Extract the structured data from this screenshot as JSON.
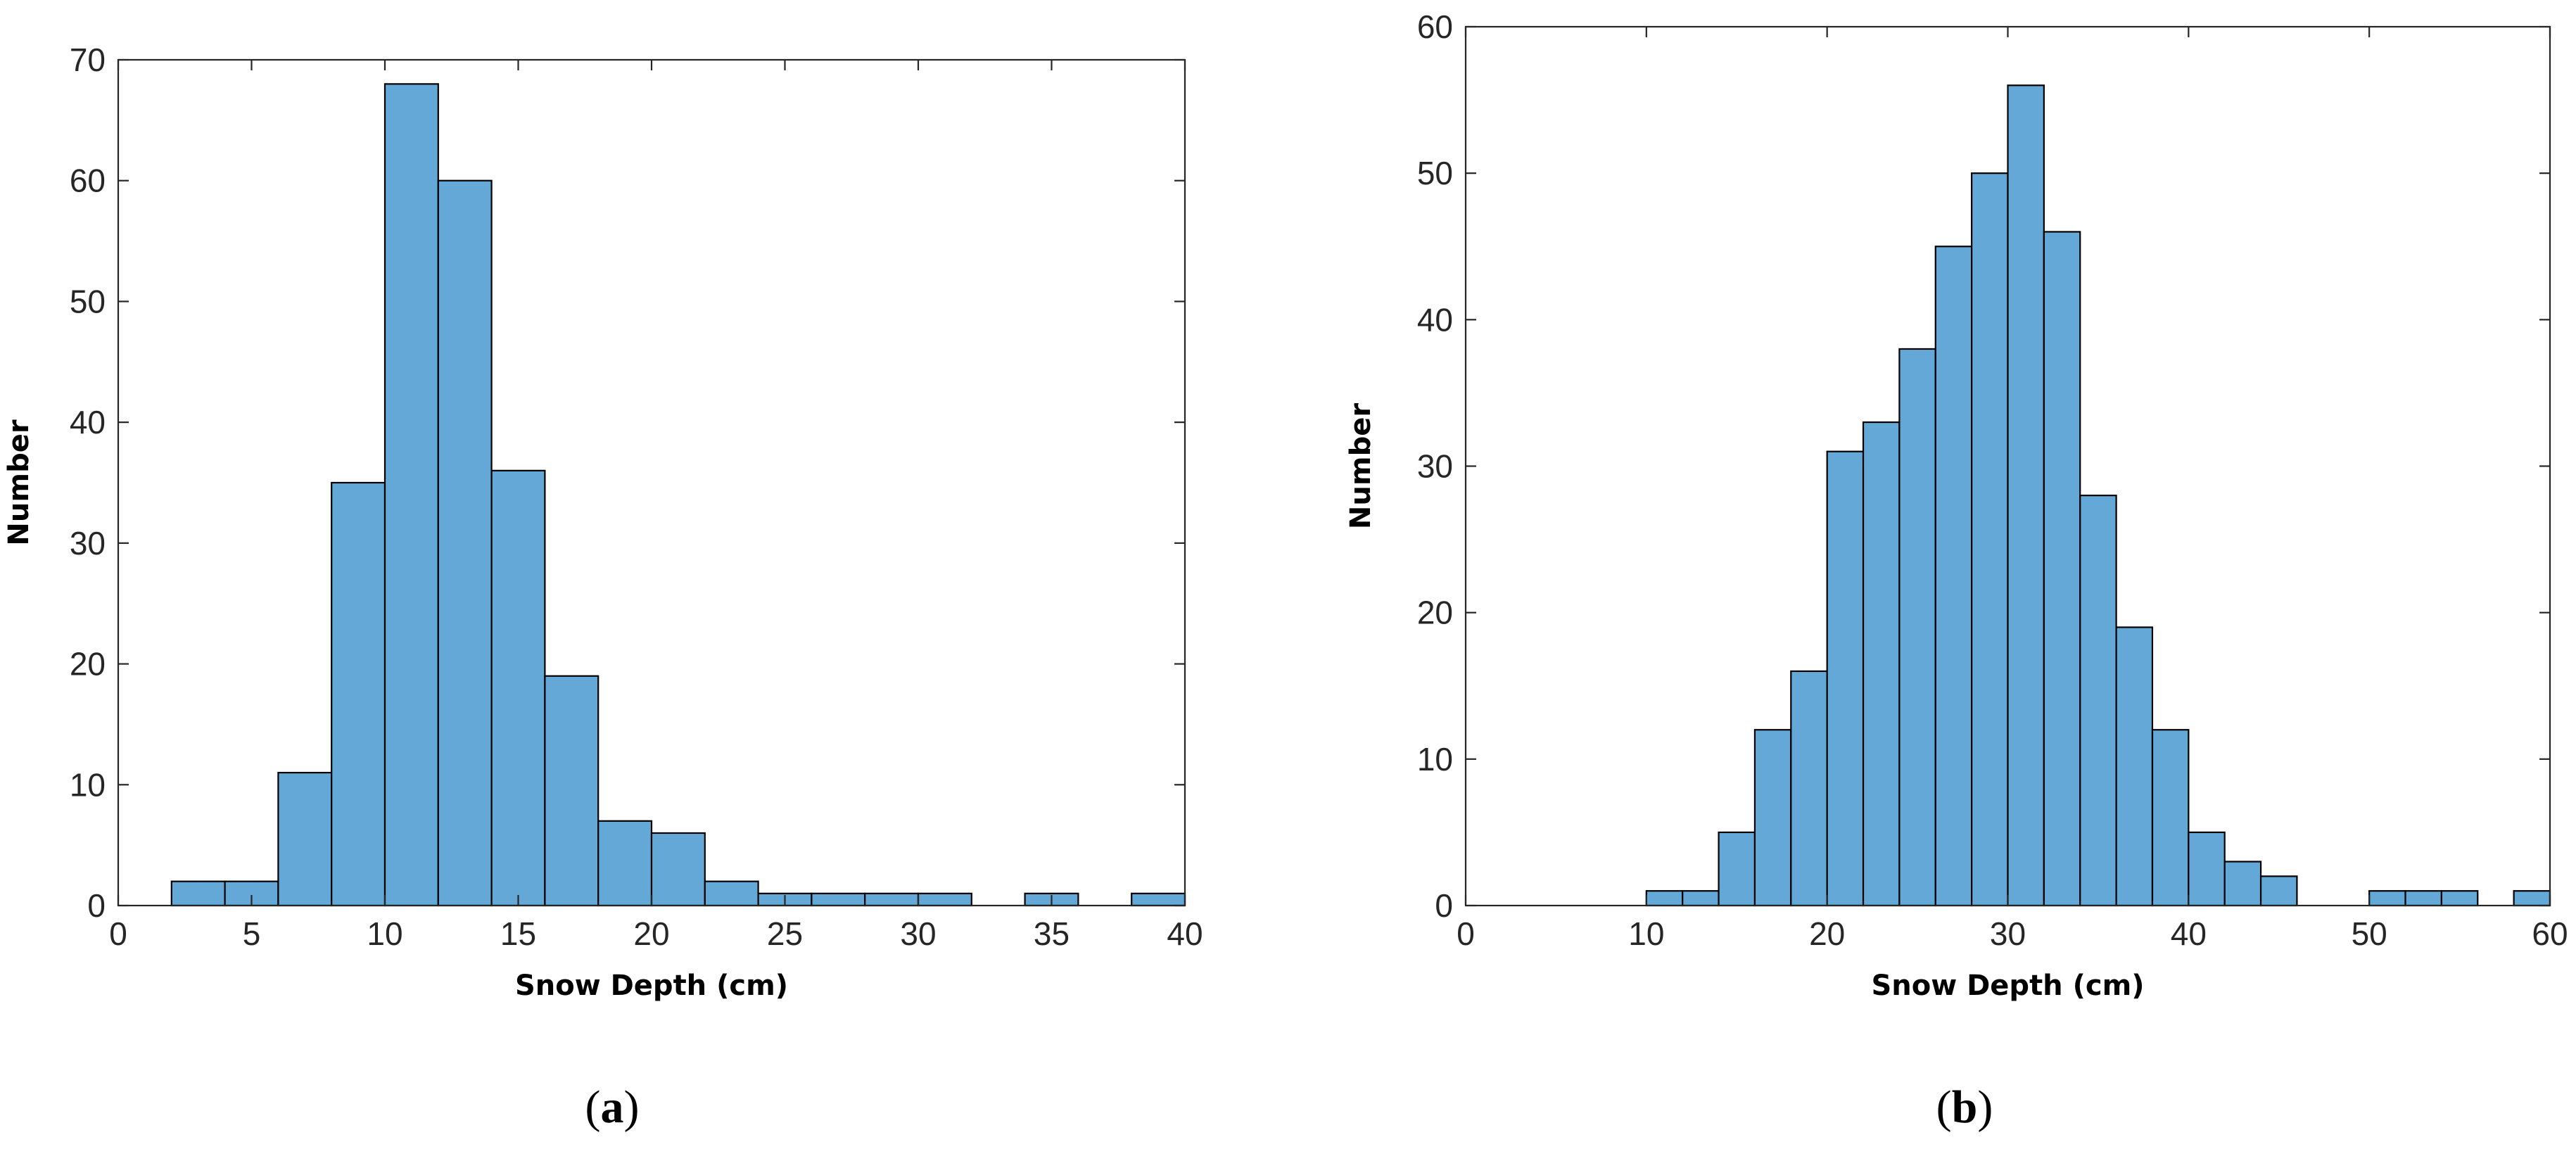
{
  "chart_data": [
    {
      "type": "bar",
      "panel_label": "a",
      "title": "",
      "xlabel": "Snow Depth (cm)",
      "ylabel": "Number",
      "xlim": [
        0,
        40
      ],
      "ylim": [
        0,
        70
      ],
      "xticks": [
        0,
        5,
        10,
        15,
        20,
        25,
        30,
        35,
        40
      ],
      "yticks": [
        0,
        10,
        20,
        30,
        40,
        50,
        60,
        70
      ],
      "grid": false,
      "bar_color": "#63a8d6",
      "edge_color": "#000000",
      "bins": [
        {
          "start": 2,
          "end": 4,
          "value": 2
        },
        {
          "start": 4,
          "end": 6,
          "value": 2
        },
        {
          "start": 6,
          "end": 8,
          "value": 11
        },
        {
          "start": 8,
          "end": 10,
          "value": 35
        },
        {
          "start": 10,
          "end": 12,
          "value": 68
        },
        {
          "start": 12,
          "end": 14,
          "value": 60
        },
        {
          "start": 14,
          "end": 16,
          "value": 36
        },
        {
          "start": 16,
          "end": 18,
          "value": 19
        },
        {
          "start": 18,
          "end": 20,
          "value": 7
        },
        {
          "start": 20,
          "end": 22,
          "value": 6
        },
        {
          "start": 22,
          "end": 24,
          "value": 2
        },
        {
          "start": 24,
          "end": 26,
          "value": 1
        },
        {
          "start": 26,
          "end": 28,
          "value": 1
        },
        {
          "start": 28,
          "end": 30,
          "value": 1
        },
        {
          "start": 30,
          "end": 32,
          "value": 1
        },
        {
          "start": 32,
          "end": 34,
          "value": 0
        },
        {
          "start": 34,
          "end": 36,
          "value": 1
        },
        {
          "start": 36,
          "end": 38,
          "value": 0
        },
        {
          "start": 38,
          "end": 40,
          "value": 1
        }
      ]
    },
    {
      "type": "bar",
      "panel_label": "b",
      "title": "",
      "xlabel": "Snow Depth (cm)",
      "ylabel": "Number",
      "xlim": [
        0,
        60
      ],
      "ylim": [
        0,
        60
      ],
      "xticks": [
        0,
        10,
        20,
        30,
        40,
        50,
        60
      ],
      "yticks": [
        0,
        10,
        20,
        30,
        40,
        50,
        60
      ],
      "grid": false,
      "bar_color": "#63a8d6",
      "edge_color": "#000000",
      "bins": [
        {
          "start": 10,
          "end": 12,
          "value": 1
        },
        {
          "start": 12,
          "end": 14,
          "value": 1
        },
        {
          "start": 14,
          "end": 16,
          "value": 5
        },
        {
          "start": 16,
          "end": 18,
          "value": 12
        },
        {
          "start": 18,
          "end": 20,
          "value": 16
        },
        {
          "start": 20,
          "end": 22,
          "value": 31
        },
        {
          "start": 22,
          "end": 24,
          "value": 33
        },
        {
          "start": 24,
          "end": 26,
          "value": 38
        },
        {
          "start": 26,
          "end": 28,
          "value": 45
        },
        {
          "start": 28,
          "end": 30,
          "value": 50
        },
        {
          "start": 30,
          "end": 32,
          "value": 56
        },
        {
          "start": 32,
          "end": 34,
          "value": 46
        },
        {
          "start": 34,
          "end": 36,
          "value": 28
        },
        {
          "start": 36,
          "end": 38,
          "value": 19
        },
        {
          "start": 38,
          "end": 40,
          "value": 12
        },
        {
          "start": 40,
          "end": 42,
          "value": 5
        },
        {
          "start": 42,
          "end": 44,
          "value": 3
        },
        {
          "start": 44,
          "end": 46,
          "value": 2
        },
        {
          "start": 46,
          "end": 48,
          "value": 0
        },
        {
          "start": 48,
          "end": 50,
          "value": 0
        },
        {
          "start": 50,
          "end": 52,
          "value": 1
        },
        {
          "start": 52,
          "end": 54,
          "value": 1
        },
        {
          "start": 54,
          "end": 56,
          "value": 1
        },
        {
          "start": 56,
          "end": 58,
          "value": 0
        },
        {
          "start": 58,
          "end": 60,
          "value": 1
        }
      ]
    }
  ]
}
